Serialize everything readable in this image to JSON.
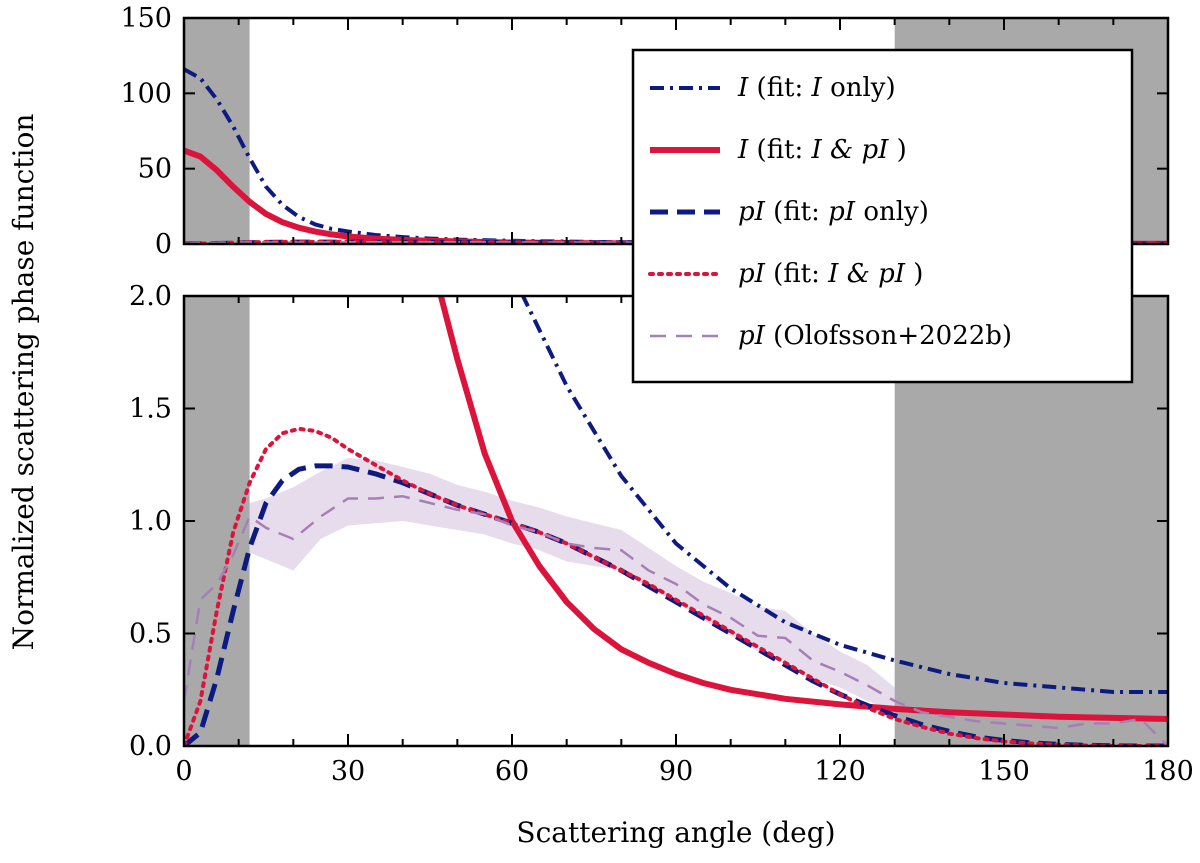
{
  "chart_data": {
    "type": "line",
    "xlabel": "Scattering angle (deg)",
    "ylabel": "Normalized scattering phase function",
    "xlim": [
      0,
      180
    ],
    "x_ticks": [
      0,
      30,
      60,
      90,
      120,
      150,
      180
    ],
    "x_tick_labels": [
      "0",
      "30",
      "60",
      "90",
      "120",
      "150",
      "180"
    ],
    "excluded_angle_ranges": [
      [
        0,
        12
      ],
      [
        130,
        180
      ]
    ],
    "panels": [
      {
        "name": "top",
        "ylim": [
          0,
          150
        ],
        "y_ticks": [
          0,
          50,
          100,
          150
        ],
        "y_tick_labels": [
          "0",
          "50",
          "100",
          "150"
        ]
      },
      {
        "name": "bottom",
        "ylim": [
          0,
          2.0
        ],
        "y_ticks": [
          0,
          0.5,
          1.0,
          1.5,
          2.0
        ],
        "y_tick_labels": [
          "0.0",
          "0.5",
          "1.0",
          "1.5",
          "2.0"
        ]
      }
    ],
    "series": [
      {
        "name": "I (fit: I only)",
        "legend_parts": [
          "I",
          " (fit:",
          "I",
          "only)"
        ],
        "color": "#0d1a80",
        "style": "dashdot",
        "width": 4,
        "x": [
          0,
          3,
          6,
          9,
          12,
          15,
          18,
          21,
          24,
          27,
          30,
          35,
          40,
          45,
          50,
          60,
          70,
          80,
          90,
          100,
          110,
          120,
          130,
          140,
          150,
          160,
          170,
          180
        ],
        "y": [
          116,
          110,
          96,
          78,
          57,
          38,
          26,
          18,
          13,
          10,
          8.3,
          6,
          4.6,
          3.6,
          2.9,
          2.1,
          1.6,
          1.2,
          0.9,
          0.7,
          0.55,
          0.45,
          0.38,
          0.32,
          0.28,
          0.26,
          0.24,
          0.24
        ]
      },
      {
        "name": "I (fit: I & pI)",
        "legend_parts": [
          "I",
          " (fit:",
          "I & pI",
          ")"
        ],
        "color": "#dc143c",
        "style": "solid",
        "width": 6,
        "x": [
          0,
          3,
          6,
          9,
          12,
          15,
          18,
          21,
          24,
          27,
          30,
          35,
          40,
          45,
          47,
          50,
          55,
          60,
          65,
          70,
          75,
          80,
          85,
          90,
          95,
          100,
          110,
          120,
          130,
          140,
          150,
          160,
          170,
          180
        ],
        "y": [
          62,
          58,
          49,
          38,
          28,
          20,
          14.5,
          10.8,
          8.2,
          6.4,
          5.0,
          3.6,
          2.7,
          2.1,
          2.0,
          1.72,
          1.3,
          1.0,
          0.8,
          0.64,
          0.52,
          0.43,
          0.37,
          0.32,
          0.28,
          0.25,
          0.21,
          0.185,
          0.165,
          0.15,
          0.14,
          0.13,
          0.125,
          0.12
        ]
      },
      {
        "name": "pI (fit: pI only)",
        "legend_parts": [
          "pI",
          " (fit:",
          "pI",
          "only)"
        ],
        "color": "#0d1a80",
        "style": "dashed",
        "width": 5,
        "x": [
          0,
          3,
          6,
          9,
          12,
          15,
          18,
          21,
          24,
          27,
          30,
          35,
          40,
          45,
          50,
          55,
          60,
          65,
          70,
          75,
          80,
          85,
          90,
          95,
          100,
          105,
          110,
          115,
          120,
          125,
          130,
          135,
          140,
          145,
          150,
          155,
          160,
          165,
          170,
          175,
          180
        ],
        "y": [
          0.0,
          0.06,
          0.3,
          0.6,
          0.88,
          1.08,
          1.18,
          1.23,
          1.245,
          1.245,
          1.24,
          1.21,
          1.17,
          1.12,
          1.07,
          1.03,
          0.99,
          0.95,
          0.9,
          0.84,
          0.78,
          0.71,
          0.64,
          0.57,
          0.5,
          0.43,
          0.36,
          0.29,
          0.23,
          0.18,
          0.135,
          0.095,
          0.065,
          0.04,
          0.025,
          0.014,
          0.007,
          0.003,
          0.001,
          0.0,
          0.0
        ]
      },
      {
        "name": "pI (fit: I & pI)",
        "legend_parts": [
          "pI",
          " (fit:",
          "I & pI",
          ")"
        ],
        "color": "#dc143c",
        "style": "dotted",
        "width": 4,
        "x": [
          0,
          3,
          6,
          9,
          12,
          15,
          18,
          21,
          24,
          27,
          30,
          35,
          40,
          45,
          50,
          55,
          60,
          65,
          70,
          75,
          80,
          85,
          90,
          95,
          100,
          105,
          110,
          115,
          120,
          125,
          130,
          135,
          140,
          145,
          150,
          155,
          160,
          165,
          170,
          175,
          180
        ],
        "y": [
          0.0,
          0.2,
          0.6,
          0.95,
          1.17,
          1.32,
          1.39,
          1.41,
          1.4,
          1.37,
          1.32,
          1.25,
          1.18,
          1.12,
          1.07,
          1.03,
          0.99,
          0.95,
          0.9,
          0.84,
          0.78,
          0.72,
          0.65,
          0.58,
          0.51,
          0.44,
          0.37,
          0.3,
          0.23,
          0.17,
          0.12,
          0.085,
          0.055,
          0.035,
          0.02,
          0.011,
          0.005,
          0.002,
          0.0,
          0.0,
          0.0
        ]
      },
      {
        "name": "pI (Olofsson+2022b)",
        "legend_parts": [
          "pI",
          " (Olofsson+2022b)"
        ],
        "color": "#a77fb6",
        "style": "dashed",
        "width": 2.5,
        "x": [
          0,
          3,
          6,
          9,
          12,
          15,
          20,
          25,
          30,
          35,
          40,
          45,
          50,
          55,
          60,
          65,
          70,
          75,
          80,
          85,
          90,
          95,
          100,
          105,
          110,
          115,
          120,
          125,
          130,
          135,
          140,
          145,
          150,
          155,
          160,
          165,
          170,
          175,
          180
        ],
        "y": [
          0.2,
          0.65,
          0.72,
          0.85,
          1.02,
          0.97,
          0.92,
          1.02,
          1.1,
          1.1,
          1.11,
          1.08,
          1.05,
          1.03,
          0.98,
          0.95,
          0.9,
          0.88,
          0.87,
          0.78,
          0.72,
          0.63,
          0.57,
          0.49,
          0.48,
          0.38,
          0.33,
          0.27,
          0.2,
          0.15,
          0.13,
          0.11,
          0.1,
          0.09,
          0.08,
          0.1,
          0.1,
          0.12,
          0.0
        ]
      }
    ],
    "uncertainty_band": {
      "name": "Olofsson+2022b uncertainty",
      "color": "#b89ac8",
      "opacity": 0.35,
      "x": [
        12,
        15,
        20,
        25,
        30,
        35,
        40,
        45,
        50,
        55,
        60,
        65,
        70,
        75,
        80,
        85,
        90,
        95,
        100,
        105,
        110,
        115,
        120,
        125,
        130
      ],
      "lower": [
        0.86,
        0.83,
        0.78,
        0.92,
        0.98,
        0.99,
        1.0,
        0.98,
        0.96,
        0.94,
        0.9,
        0.87,
        0.82,
        0.8,
        0.78,
        0.7,
        0.64,
        0.56,
        0.49,
        0.42,
        0.38,
        0.3,
        0.26,
        0.2,
        0.16
      ],
      "upper": [
        1.08,
        1.1,
        1.15,
        1.22,
        1.28,
        1.27,
        1.24,
        1.21,
        1.16,
        1.13,
        1.09,
        1.06,
        1.02,
        0.99,
        0.96,
        0.88,
        0.8,
        0.73,
        0.68,
        0.62,
        0.6,
        0.5,
        0.42,
        0.36,
        0.26
      ]
    },
    "legend": {
      "placement": "top-right"
    }
  }
}
